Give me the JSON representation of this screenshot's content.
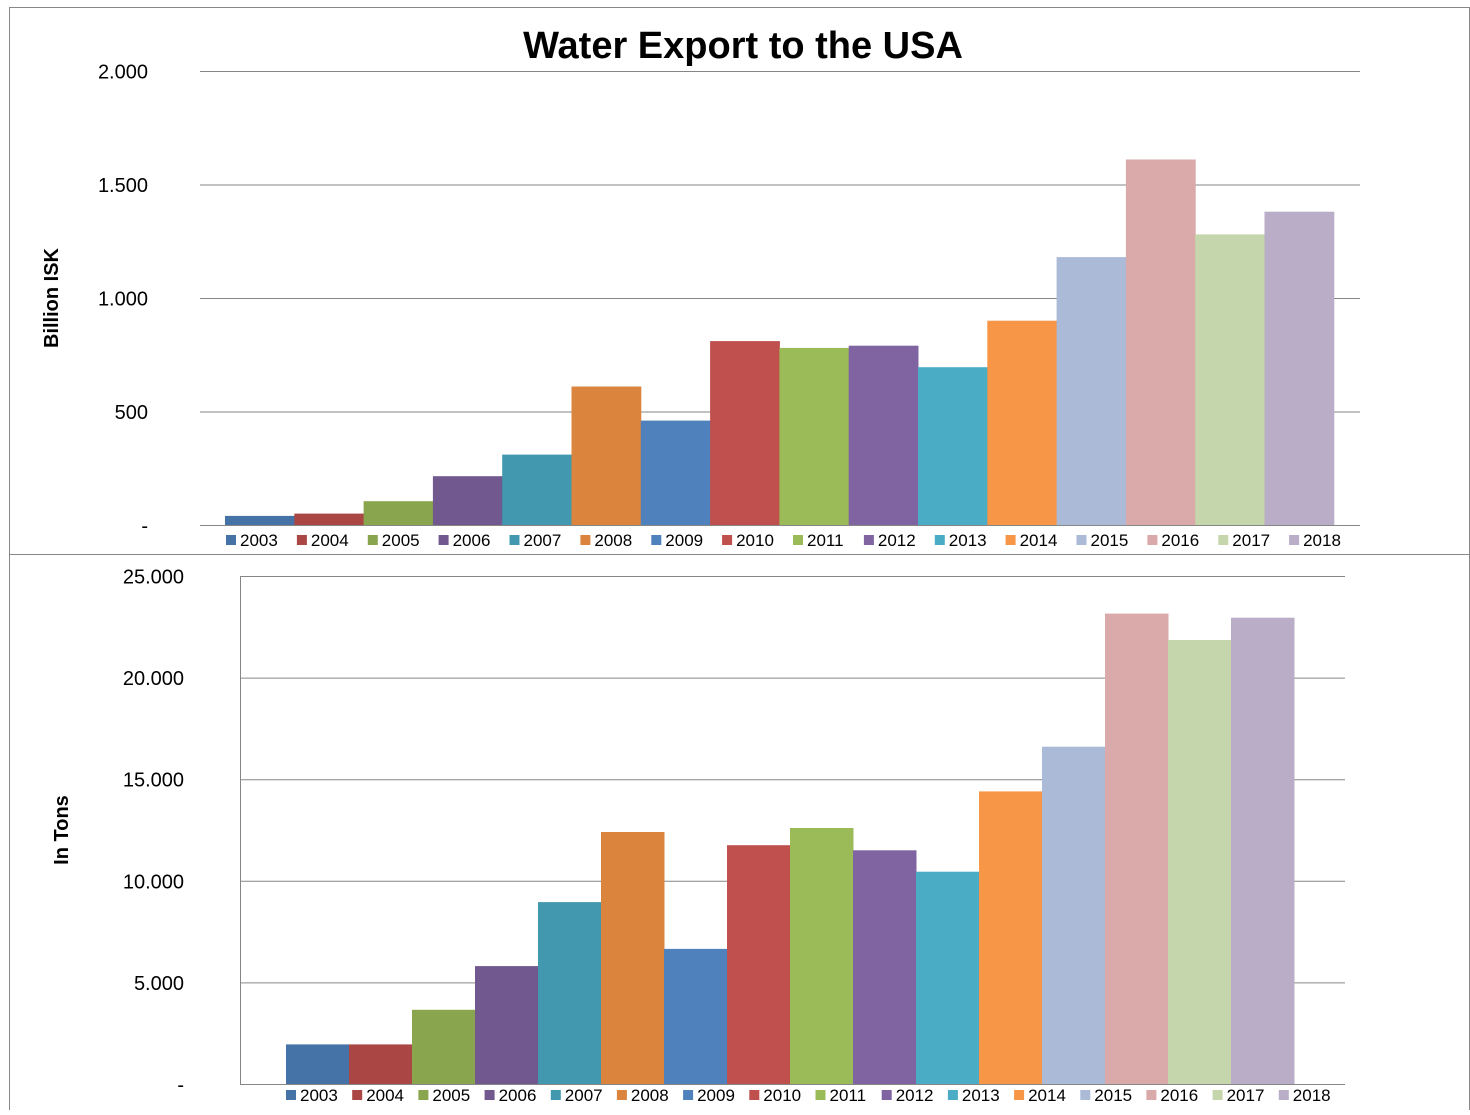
{
  "chart_data": [
    {
      "type": "bar",
      "title": "Water Export to the USA",
      "xlabel": "",
      "ylabel": "Billion ISK",
      "ylim": [
        0,
        2000
      ],
      "yticks": [
        {
          "value": 0,
          "label": "-"
        },
        {
          "value": 500,
          "label": "500"
        },
        {
          "value": 1000,
          "label": "1.000"
        },
        {
          "value": 1500,
          "label": "1.500"
        },
        {
          "value": 2000,
          "label": "2.000"
        }
      ],
      "grid": true,
      "legend_position": "bottom",
      "series": [
        {
          "name": "2003",
          "value": 40
        },
        {
          "name": "2004",
          "value": 50
        },
        {
          "name": "2005",
          "value": 105
        },
        {
          "name": "2006",
          "value": 215
        },
        {
          "name": "2007",
          "value": 310
        },
        {
          "name": "2008",
          "value": 610
        },
        {
          "name": "2009",
          "value": 460
        },
        {
          "name": "2010",
          "value": 810
        },
        {
          "name": "2011",
          "value": 780
        },
        {
          "name": "2012",
          "value": 790
        },
        {
          "name": "2013",
          "value": 695
        },
        {
          "name": "2014",
          "value": 900
        },
        {
          "name": "2015",
          "value": 1180
        },
        {
          "name": "2016",
          "value": 1610
        },
        {
          "name": "2017",
          "value": 1280
        },
        {
          "name": "2018",
          "value": 1380
        }
      ]
    },
    {
      "type": "bar",
      "title": "",
      "xlabel": "",
      "ylabel": "In Tons",
      "ylim": [
        0,
        25000
      ],
      "yticks": [
        {
          "value": 0,
          "label": "-"
        },
        {
          "value": 5000,
          "label": "5.000"
        },
        {
          "value": 10000,
          "label": "10.000"
        },
        {
          "value": 15000,
          "label": "15.000"
        },
        {
          "value": 20000,
          "label": "20.000"
        },
        {
          "value": 25000,
          "label": "25.000"
        }
      ],
      "grid": true,
      "legend_position": "bottom",
      "series": [
        {
          "name": "2003",
          "value": 1950
        },
        {
          "name": "2004",
          "value": 1950
        },
        {
          "name": "2005",
          "value": 3650
        },
        {
          "name": "2006",
          "value": 5800
        },
        {
          "name": "2007",
          "value": 8950
        },
        {
          "name": "2008",
          "value": 12400
        },
        {
          "name": "2009",
          "value": 6650
        },
        {
          "name": "2010",
          "value": 11750
        },
        {
          "name": "2011",
          "value": 12600
        },
        {
          "name": "2012",
          "value": 11500
        },
        {
          "name": "2013",
          "value": 10450
        },
        {
          "name": "2014",
          "value": 14400
        },
        {
          "name": "2015",
          "value": 16600
        },
        {
          "name": "2016",
          "value": 23150
        },
        {
          "name": "2017",
          "value": 21850
        },
        {
          "name": "2018",
          "value": 22950
        }
      ]
    }
  ],
  "colors": [
    "#4572a7",
    "#aa4643",
    "#89a54e",
    "#71588f",
    "#4198af",
    "#db843d",
    "#4f81bd",
    "#c0504d",
    "#9bbb59",
    "#8064a2",
    "#4bacc6",
    "#f79646",
    "#aabad7",
    "#d9aaa9",
    "#c6d6ac",
    "#baadc8"
  ]
}
